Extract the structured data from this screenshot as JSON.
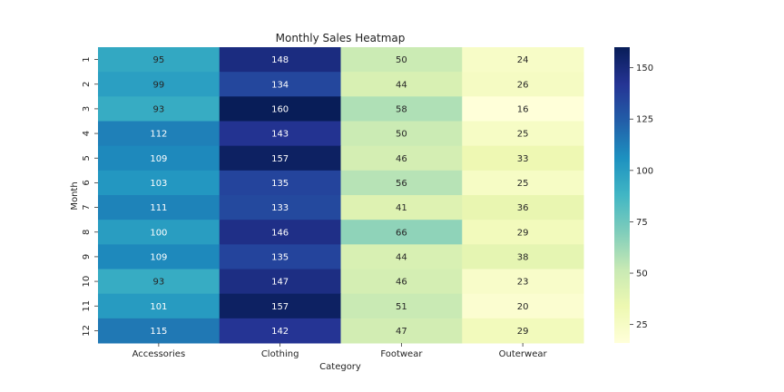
{
  "chart_data": {
    "type": "heatmap",
    "title": "Monthly Sales Heatmap",
    "xlabel": "Category",
    "ylabel": "Month",
    "x": [
      "Accessories",
      "Clothing",
      "Footwear",
      "Outerwear"
    ],
    "y": [
      "1",
      "2",
      "3",
      "4",
      "5",
      "6",
      "7",
      "8",
      "9",
      "10",
      "11",
      "12"
    ],
    "values": [
      [
        95,
        148,
        50,
        24
      ],
      [
        99,
        134,
        44,
        26
      ],
      [
        93,
        160,
        58,
        16
      ],
      [
        112,
        143,
        50,
        25
      ],
      [
        109,
        157,
        46,
        33
      ],
      [
        103,
        135,
        56,
        25
      ],
      [
        111,
        133,
        41,
        36
      ],
      [
        100,
        146,
        66,
        29
      ],
      [
        109,
        135,
        44,
        38
      ],
      [
        93,
        147,
        46,
        23
      ],
      [
        101,
        157,
        51,
        20
      ],
      [
        115,
        142,
        47,
        29
      ]
    ],
    "colormap": "YlGnBu",
    "color_range": [
      16,
      160
    ],
    "colorbar_ticks": [
      25,
      50,
      75,
      100,
      125,
      150
    ],
    "colorbar_palette": [
      "#ffffd9",
      "#edf8b1",
      "#c7e9b4",
      "#7fcdbb",
      "#41b6c4",
      "#1d91c0",
      "#225ea8",
      "#253494",
      "#081d58"
    ],
    "light_text_color": "#ffffff",
    "dark_text_color": "#262626"
  }
}
